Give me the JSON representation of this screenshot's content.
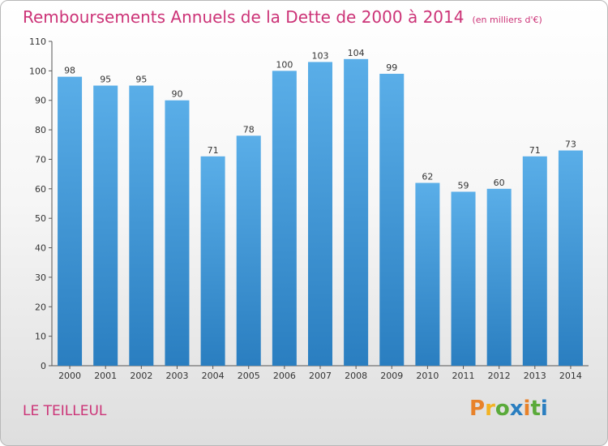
{
  "chart_data": {
    "type": "bar",
    "title": "Remboursements Annuels de la Dette de 2000 à 2014",
    "unit_note": "(en milliers d'€)",
    "categories": [
      "2000",
      "2001",
      "2002",
      "2003",
      "2004",
      "2005",
      "2006",
      "2007",
      "2008",
      "2009",
      "2010",
      "2011",
      "2012",
      "2013",
      "2014"
    ],
    "values": [
      98,
      95,
      95,
      90,
      71,
      78,
      100,
      103,
      104,
      99,
      62,
      59,
      60,
      71,
      73
    ],
    "ylim": [
      0,
      110
    ],
    "yticks": [
      0,
      10,
      20,
      30,
      40,
      50,
      60,
      70,
      80,
      90,
      100,
      110
    ],
    "grid": false,
    "bar_color_top": "#5aaee8",
    "bar_color_bottom": "#2a7ec0"
  },
  "commune": "LE TEILLEUL",
  "logo": {
    "text": "Proxiti",
    "letters": [
      {
        "ch": "P",
        "color": "#e8822a"
      },
      {
        "ch": "r",
        "color": "#f2b324"
      },
      {
        "ch": "o",
        "color": "#5aaa3a"
      },
      {
        "ch": "x",
        "color": "#2a7ec0"
      },
      {
        "ch": "i",
        "color": "#e8822a"
      },
      {
        "ch": "t",
        "color": "#5aaa3a"
      },
      {
        "ch": "i",
        "color": "#2a7ec0"
      }
    ]
  }
}
